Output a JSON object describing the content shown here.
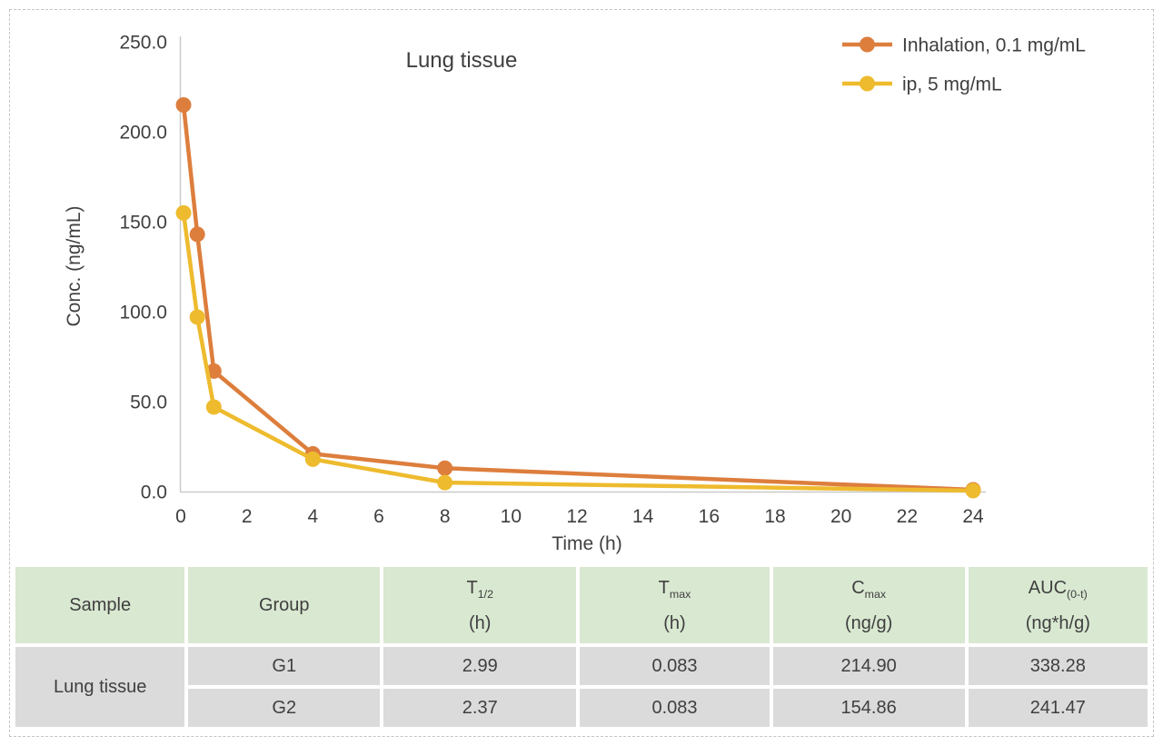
{
  "chart_data": {
    "type": "line",
    "title": "Lung tissue",
    "xlabel": "Time (h)",
    "ylabel": "Conc. (ng/mL)",
    "xlim": [
      0,
      24
    ],
    "ylim": [
      0,
      250
    ],
    "x_ticks": [
      0,
      2,
      4,
      6,
      8,
      10,
      12,
      14,
      16,
      18,
      20,
      22,
      24
    ],
    "y_ticks": [
      0,
      50,
      100,
      150,
      200,
      250
    ],
    "y_tick_labels": [
      "0.0",
      "50.0",
      "100.0",
      "150.0",
      "200.0",
      "250.0"
    ],
    "grid": false,
    "legend_position": "top-right",
    "axis_color": "#c9c9c9",
    "text_color": "#3f3f3f",
    "series": [
      {
        "name": "Inhalation, 0.1 mg/mL",
        "color": "#dd7e3d",
        "x": [
          0.083,
          0.5,
          1,
          4,
          8,
          24
        ],
        "y": [
          214.9,
          143,
          67,
          21,
          13,
          1
        ]
      },
      {
        "name": "ip, 5 mg/mL",
        "color": "#eebb2e",
        "x": [
          0.083,
          0.5,
          1,
          4,
          8,
          24
        ],
        "y": [
          154.86,
          97,
          47,
          18,
          5,
          0.5
        ]
      }
    ]
  },
  "table": {
    "headers": [
      {
        "main": "Sample",
        "sub": "",
        "unit": ""
      },
      {
        "main": "Group",
        "sub": "",
        "unit": ""
      },
      {
        "main": "T",
        "sub": "1/2",
        "unit": "(h)"
      },
      {
        "main": "T",
        "sub": "max",
        "unit": "(h)"
      },
      {
        "main": "C",
        "sub": "max",
        "unit": "(ng/g)"
      },
      {
        "main": "AUC",
        "sub": "(0-t)",
        "unit": "(ng*h/g)"
      }
    ],
    "sample_label": "Lung tissue",
    "rows": [
      {
        "group": "G1",
        "t_half": "2.99",
        "t_max": "0.083",
        "c_max": "214.90",
        "auc": "338.28"
      },
      {
        "group": "G2",
        "t_half": "2.37",
        "t_max": "0.083",
        "c_max": "154.86",
        "auc": "241.47"
      }
    ]
  }
}
